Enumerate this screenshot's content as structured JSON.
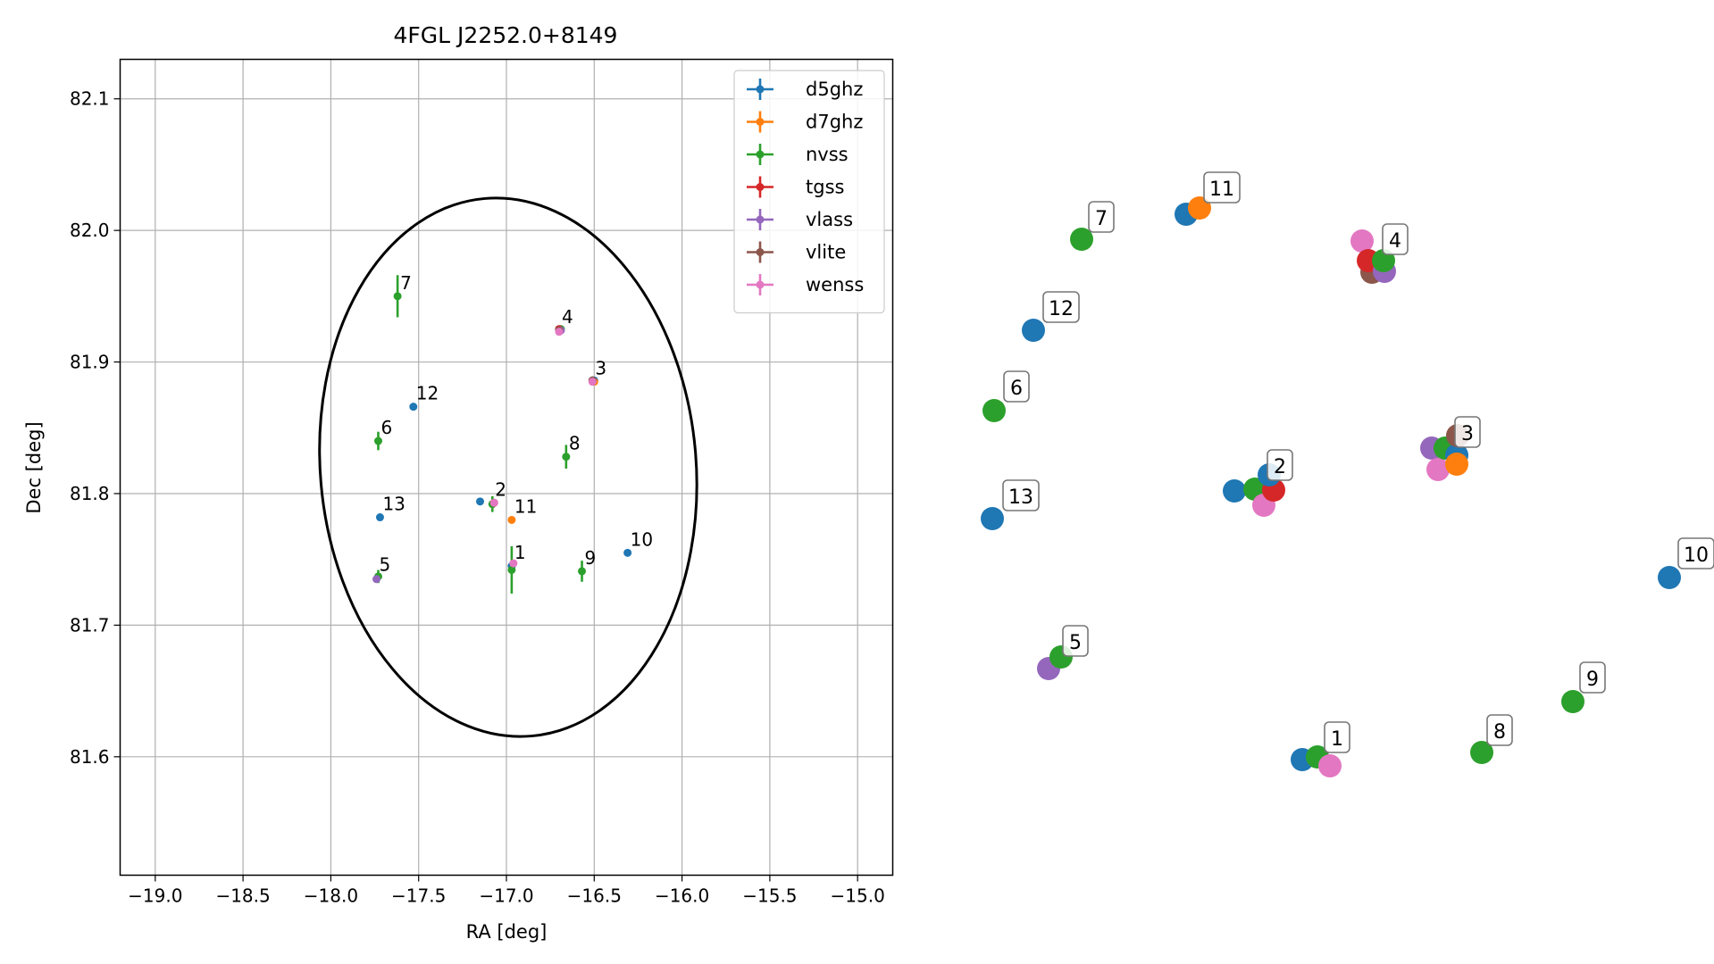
{
  "chart_data": [
    {
      "type": "scatter",
      "title": "4FGL J2252.0+8149",
      "xlabel": "RA [deg]",
      "ylabel": "Dec [deg]",
      "xlim": [
        -19.2,
        -14.8
      ],
      "ylim": [
        81.51,
        82.13
      ],
      "xticks": [
        -19.0,
        -18.5,
        -18.0,
        -17.5,
        -17.0,
        -16.5,
        -16.0,
        -15.5,
        -15.0
      ],
      "xtick_labels": [
        "−19.0",
        "−18.5",
        "−18.0",
        "−17.5",
        "−17.0",
        "−16.5",
        "−16.0",
        "−15.5",
        "−15.0"
      ],
      "yticks": [
        81.6,
        81.7,
        81.8,
        81.9,
        82.0,
        82.1
      ],
      "ytick_labels": [
        "81.6",
        "81.7",
        "81.8",
        "81.9",
        "82.0",
        "82.1"
      ],
      "grid": true,
      "legend_position": "top-right",
      "colors": {
        "d5ghz": "#1f77b4",
        "d7ghz": "#ff7f0e",
        "nvss": "#2ca02c",
        "tgss": "#d62728",
        "vlass": "#9467bd",
        "vlite": "#8c564b",
        "wenss": "#e377c2"
      },
      "ellipse": {
        "center": [
          -16.99,
          81.82
        ],
        "ra_halfwidth": 1.07,
        "dec_halfheight": 0.205,
        "color": "#000000"
      },
      "series": [
        {
          "name": "d5ghz",
          "points": [
            {
              "x": -16.97,
              "y": 81.745
            },
            {
              "x": -17.15,
              "y": 81.794
            },
            {
              "x": -16.5,
              "y": 81.886
            },
            {
              "x": -16.7,
              "y": 81.925
            },
            {
              "x": -16.31,
              "y": 81.755
            },
            {
              "x": -17.53,
              "y": 81.866
            },
            {
              "x": -17.72,
              "y": 81.782
            }
          ]
        },
        {
          "name": "d7ghz",
          "points": [
            {
              "x": -16.97,
              "y": 81.78
            },
            {
              "x": -16.5,
              "y": 81.885
            }
          ]
        },
        {
          "name": "nvss",
          "points": [
            {
              "x": -16.97,
              "y": 81.742,
              "yerr": 0.018
            },
            {
              "x": -17.08,
              "y": 81.792,
              "yerr": 0.006
            },
            {
              "x": -16.51,
              "y": 81.886,
              "yerr": 0.003
            },
            {
              "x": -16.69,
              "y": 81.925,
              "yerr": 0.003
            },
            {
              "x": -17.73,
              "y": 81.737,
              "yerr": 0.005
            },
            {
              "x": -17.73,
              "y": 81.84,
              "yerr": 0.007
            },
            {
              "x": -17.62,
              "y": 81.95,
              "yerr": 0.016
            },
            {
              "x": -16.66,
              "y": 81.828,
              "yerr": 0.009
            },
            {
              "x": -16.57,
              "y": 81.741,
              "yerr": 0.008
            }
          ]
        },
        {
          "name": "tgss",
          "points": [
            {
              "x": -17.07,
              "y": 81.793
            },
            {
              "x": -16.7,
              "y": 81.925
            }
          ]
        },
        {
          "name": "vlass",
          "points": [
            {
              "x": -17.74,
              "y": 81.735
            },
            {
              "x": -16.51,
              "y": 81.886
            },
            {
              "x": -16.69,
              "y": 81.924
            }
          ]
        },
        {
          "name": "vlite",
          "points": [
            {
              "x": -16.51,
              "y": 81.886
            },
            {
              "x": -16.7,
              "y": 81.924
            }
          ]
        },
        {
          "name": "wenss",
          "points": [
            {
              "x": -16.96,
              "y": 81.747
            },
            {
              "x": -17.07,
              "y": 81.793
            },
            {
              "x": -16.51,
              "y": 81.885
            },
            {
              "x": -16.7,
              "y": 81.923
            }
          ]
        }
      ],
      "annotations": [
        {
          "text": "1",
          "x": -16.97,
          "y": 81.745
        },
        {
          "text": "2",
          "x": -17.08,
          "y": 81.793
        },
        {
          "text": "3",
          "x": -16.51,
          "y": 81.885
        },
        {
          "text": "4",
          "x": -16.7,
          "y": 81.924
        },
        {
          "text": "5",
          "x": -17.74,
          "y": 81.736
        },
        {
          "text": "6",
          "x": -17.73,
          "y": 81.84
        },
        {
          "text": "7",
          "x": -17.62,
          "y": 81.95
        },
        {
          "text": "8",
          "x": -16.66,
          "y": 81.828
        },
        {
          "text": "9",
          "x": -16.57,
          "y": 81.741
        },
        {
          "text": "10",
          "x": -16.31,
          "y": 81.755
        },
        {
          "text": "11",
          "x": -16.97,
          "y": 81.78
        },
        {
          "text": "12",
          "x": -17.53,
          "y": 81.866
        },
        {
          "text": "13",
          "x": -17.72,
          "y": 81.782
        }
      ]
    },
    {
      "type": "scatter",
      "title": "",
      "grid": false,
      "axes": false,
      "clusters": [
        {
          "label": "1",
          "points": [
            {
              "survey": "d5ghz"
            },
            {
              "survey": "nvss"
            },
            {
              "survey": "wenss"
            }
          ]
        },
        {
          "label": "2",
          "points": [
            {
              "survey": "d5ghz"
            },
            {
              "survey": "nvss"
            },
            {
              "survey": "wenss"
            },
            {
              "survey": "tgss"
            },
            {
              "survey": "d5ghz"
            }
          ]
        },
        {
          "label": "3",
          "points": [
            {
              "survey": "vlass"
            },
            {
              "survey": "wenss"
            },
            {
              "survey": "nvss"
            },
            {
              "survey": "d5ghz"
            },
            {
              "survey": "vlite"
            },
            {
              "survey": "d7ghz"
            }
          ]
        },
        {
          "label": "4",
          "points": [
            {
              "survey": "wenss"
            },
            {
              "survey": "vlite"
            },
            {
              "survey": "tgss"
            },
            {
              "survey": "vlass"
            },
            {
              "survey": "nvss"
            }
          ]
        },
        {
          "label": "5",
          "points": [
            {
              "survey": "vlass"
            },
            {
              "survey": "nvss"
            }
          ]
        },
        {
          "label": "6",
          "points": [
            {
              "survey": "nvss"
            }
          ]
        },
        {
          "label": "7",
          "points": [
            {
              "survey": "nvss"
            }
          ]
        },
        {
          "label": "8",
          "points": [
            {
              "survey": "nvss"
            }
          ]
        },
        {
          "label": "9",
          "points": [
            {
              "survey": "nvss"
            }
          ]
        },
        {
          "label": "10",
          "points": [
            {
              "survey": "d5ghz"
            }
          ]
        },
        {
          "label": "11",
          "points": [
            {
              "survey": "d5ghz"
            },
            {
              "survey": "d7ghz"
            }
          ]
        },
        {
          "label": "12",
          "points": [
            {
              "survey": "d5ghz"
            }
          ]
        },
        {
          "label": "13",
          "points": [
            {
              "survey": "d5ghz"
            }
          ]
        }
      ]
    }
  ]
}
